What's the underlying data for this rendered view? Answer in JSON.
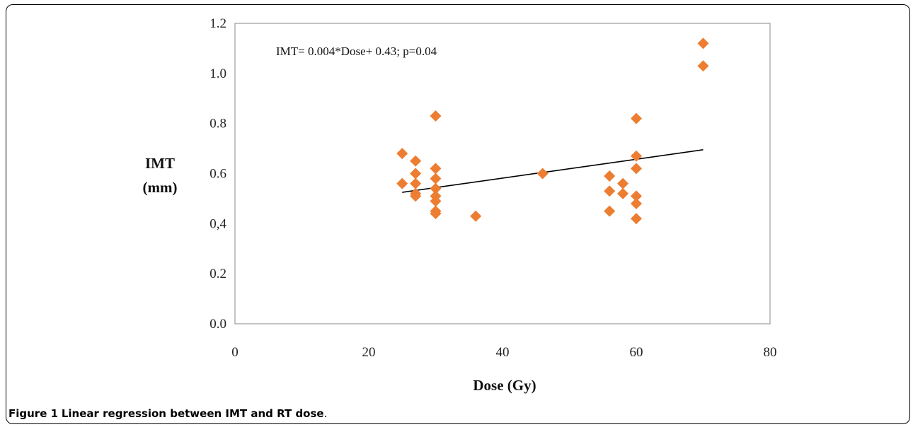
{
  "figure": {
    "label": "Figure 1",
    "caption": "Linear regression between IMT and RT dose",
    "caption_end": "."
  },
  "chart_data": {
    "type": "scatter",
    "xlabel": "Dose (Gy)",
    "ylabel_line1": "IMT",
    "ylabel_line2": "(mm)",
    "xlim": [
      0,
      80
    ],
    "ylim": [
      0.0,
      1.2
    ],
    "x_ticks": [
      0,
      20,
      40,
      60,
      80
    ],
    "x_tick_labels": [
      "0",
      "20",
      "40",
      "60",
      "80"
    ],
    "y_ticks": [
      0.0,
      0.2,
      0.4,
      0.6,
      0.8,
      1.0,
      1.2
    ],
    "y_tick_labels": [
      "0.0",
      "0.2",
      "0,4",
      "0.6",
      "0.8",
      "1.0",
      "1.2"
    ],
    "grid": false,
    "annotation": "IMT= 0.004*Dose+ 0.43; p=0.04",
    "marker_color": "#ED7D31",
    "trendline_color": "#000000",
    "trendline": {
      "x": [
        25,
        70
      ],
      "y": [
        0.525,
        0.695
      ]
    },
    "points": [
      {
        "x": 25,
        "y": 0.68
      },
      {
        "x": 25,
        "y": 0.56
      },
      {
        "x": 27,
        "y": 0.65
      },
      {
        "x": 27,
        "y": 0.6
      },
      {
        "x": 27,
        "y": 0.56
      },
      {
        "x": 27,
        "y": 0.52
      },
      {
        "x": 27,
        "y": 0.51
      },
      {
        "x": 30,
        "y": 0.83
      },
      {
        "x": 30,
        "y": 0.62
      },
      {
        "x": 30,
        "y": 0.58
      },
      {
        "x": 30,
        "y": 0.54
      },
      {
        "x": 30,
        "y": 0.51
      },
      {
        "x": 30,
        "y": 0.49
      },
      {
        "x": 30,
        "y": 0.45
      },
      {
        "x": 30,
        "y": 0.44
      },
      {
        "x": 36,
        "y": 0.43
      },
      {
        "x": 46,
        "y": 0.6
      },
      {
        "x": 56,
        "y": 0.59
      },
      {
        "x": 56,
        "y": 0.53
      },
      {
        "x": 56,
        "y": 0.45
      },
      {
        "x": 58,
        "y": 0.56
      },
      {
        "x": 58,
        "y": 0.52
      },
      {
        "x": 60,
        "y": 0.82
      },
      {
        "x": 60,
        "y": 0.67
      },
      {
        "x": 60,
        "y": 0.62
      },
      {
        "x": 60,
        "y": 0.51
      },
      {
        "x": 60,
        "y": 0.48
      },
      {
        "x": 60,
        "y": 0.42
      },
      {
        "x": 70,
        "y": 1.12
      },
      {
        "x": 70,
        "y": 1.03
      }
    ]
  }
}
